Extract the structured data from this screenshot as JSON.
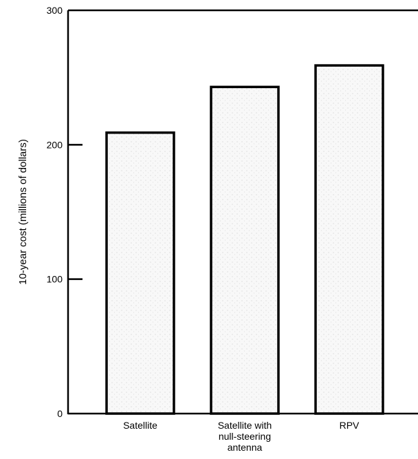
{
  "chart_data": {
    "type": "bar",
    "title": "",
    "xlabel": "",
    "ylabel": "10-year cost (millions of dollars)",
    "ylim": [
      0,
      300
    ],
    "yticks": [
      0,
      100,
      200,
      300
    ],
    "grid": false,
    "categories": [
      [
        "Satellite"
      ],
      [
        "Satellite with",
        "null-steering",
        "antenna"
      ],
      [
        "RPV"
      ]
    ],
    "values": [
      209,
      243,
      259
    ],
    "colors": {
      "bar_fill": "#f7f7f7",
      "bar_stroke": "#000000",
      "axis": "#000000"
    }
  }
}
